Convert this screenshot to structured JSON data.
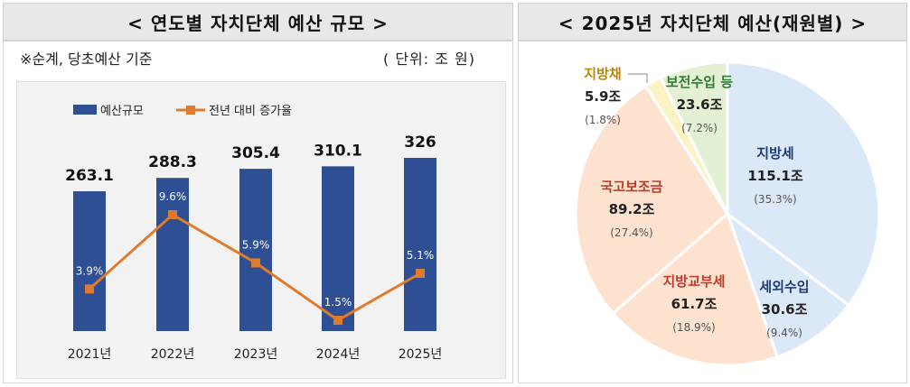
{
  "left_panel": {
    "title": "< 연도별 자치단체 예산 규모 >",
    "note": "※순계, 당초예산 기준",
    "unit": "( 단위: 조 원)"
  },
  "right_panel": {
    "title": "< 2025년 자치단체 예산(재원별) >"
  },
  "chart_data": [
    {
      "type": "bar",
      "categories": [
        "2021년",
        "2022년",
        "2023년",
        "2024년",
        "2025년"
      ],
      "series": [
        {
          "name": "예산규모",
          "values": [
            263.1,
            288.3,
            305.4,
            310.1,
            326
          ],
          "labels": [
            "263.1",
            "288.3",
            "305.4",
            "310.1",
            "326"
          ],
          "color": "#2f4f94"
        },
        {
          "name": "전년 대비 증가율",
          "type": "line",
          "values": [
            3.9,
            9.6,
            5.9,
            1.5,
            5.1
          ],
          "labels": [
            "3.9%",
            "9.6%",
            "5.9%",
            "1.5%",
            "5.1%"
          ],
          "color": "#e07b2e"
        }
      ],
      "legend": "top-left",
      "grid": false
    },
    {
      "type": "pie",
      "slices": [
        {
          "label": "지방세",
          "value": 115.1,
          "value_text": "115.1조",
          "pct": 35.3,
          "pct_text": "(35.3%)",
          "color": "#dbe8f7",
          "text_color": "#1f3b73"
        },
        {
          "label": "세외수입",
          "value": 30.6,
          "value_text": "30.6조",
          "pct": 9.4,
          "pct_text": "(9.4%)",
          "color": "#dbe8f7",
          "text_color": "#1f3b73"
        },
        {
          "label": "지방교부세",
          "value": 61.7,
          "value_text": "61.7조",
          "pct": 18.9,
          "pct_text": "(18.9%)",
          "color": "#fde3cf",
          "text_color": "#c0392b"
        },
        {
          "label": "국고보조금",
          "value": 89.2,
          "value_text": "89.2조",
          "pct": 27.4,
          "pct_text": "(27.4%)",
          "color": "#fde3cf",
          "text_color": "#c0392b"
        },
        {
          "label": "지방채",
          "value": 5.9,
          "value_text": "5.9조",
          "pct": 1.8,
          "pct_text": "(1.8%)",
          "color": "#fbf3c4",
          "text_color": "#b8860b"
        },
        {
          "label": "보전수입 등",
          "value": 23.6,
          "value_text": "23.6조",
          "pct": 7.2,
          "pct_text": "(7.2%)",
          "color": "#e3f0d3",
          "text_color": "#2e7d32"
        }
      ]
    }
  ]
}
